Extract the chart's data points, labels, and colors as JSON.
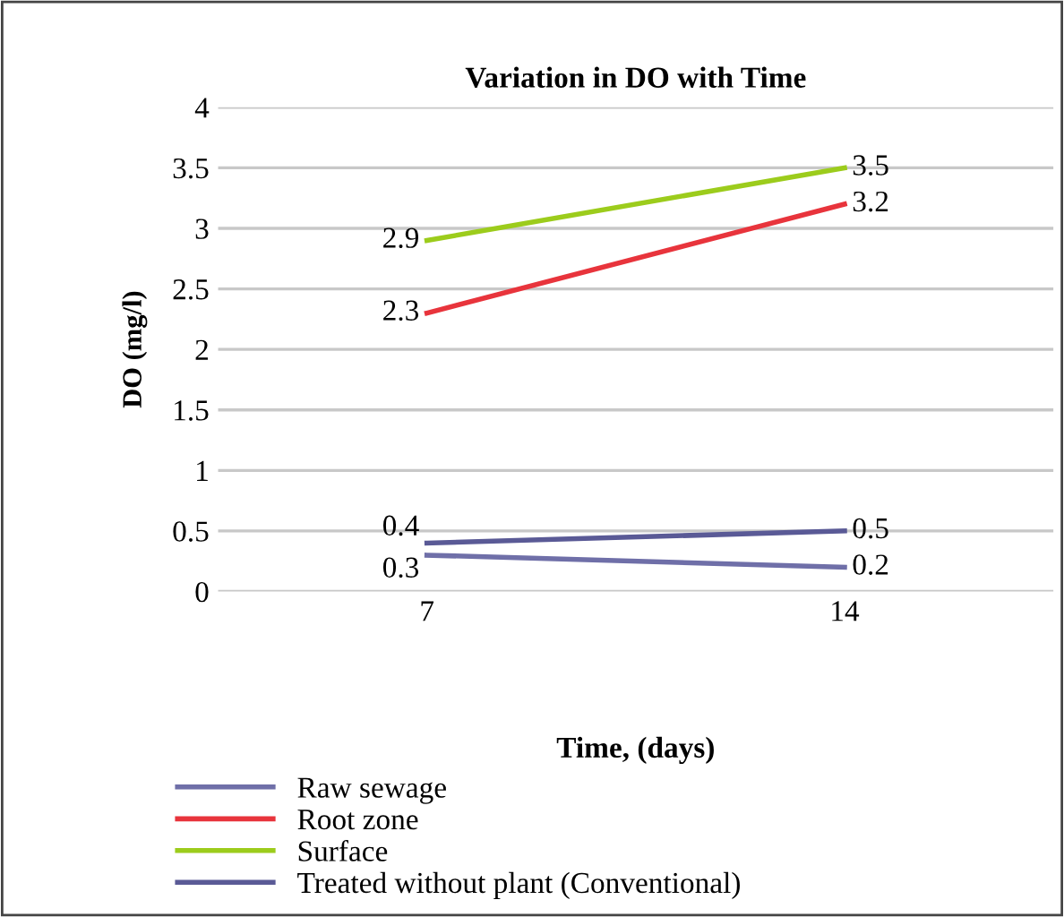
{
  "chart_data": {
    "type": "line",
    "title": "Variation in DO with Time",
    "xlabel": "Time, (days)",
    "ylabel": "DO (mg/l)",
    "categories": [
      "7",
      "14"
    ],
    "series": [
      {
        "name": "Raw sewage",
        "color": "#6f6fa8",
        "values": [
          0.3,
          0.2
        ]
      },
      {
        "name": "Root zone",
        "color": "#e8343c",
        "values": [
          2.3,
          3.2
        ]
      },
      {
        "name": "Surface",
        "color": "#9ccc1c",
        "values": [
          2.9,
          3.5
        ]
      },
      {
        "name": "Treated without plant (Conventional)",
        "color": "#5a5a96",
        "values": [
          0.4,
          0.5
        ]
      }
    ],
    "ylim": [
      0,
      4
    ],
    "yticks": [
      0,
      0.5,
      1,
      1.5,
      2,
      2.5,
      3,
      3.5,
      4
    ],
    "grid": "y",
    "legend": "bottom left",
    "data_labels": true,
    "marker": "none",
    "line_style": "solid"
  }
}
